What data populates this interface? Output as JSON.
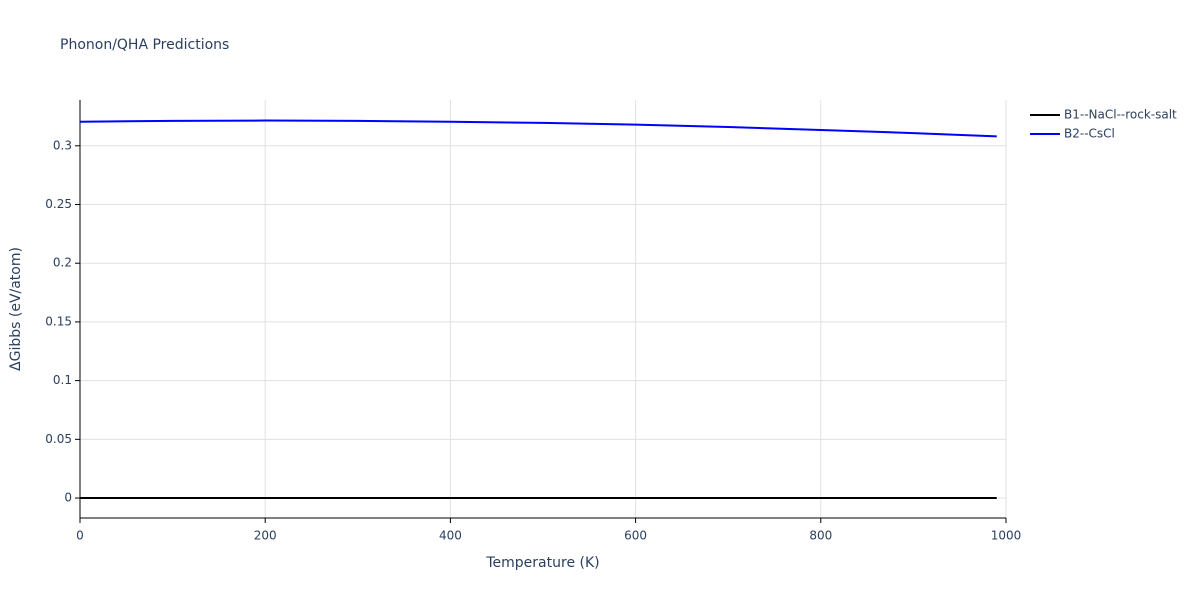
{
  "chart_data": {
    "type": "line",
    "title": "Phonon/QHA Predictions",
    "x_label": "Temperature (K)",
    "y_label": "ΔGibbs (eV/atom)",
    "x": [
      0,
      100,
      200,
      300,
      400,
      500,
      600,
      700,
      800,
      900,
      990
    ],
    "series": [
      {
        "name": "B1--NaCl--rock-salt",
        "color": "#000000",
        "values": [
          0,
          0,
          0,
          0,
          0,
          0,
          0,
          0,
          0,
          0,
          0
        ]
      },
      {
        "name": "B2--CsCl",
        "color": "#0000ff",
        "values": [
          0.3205,
          0.3212,
          0.3215,
          0.3212,
          0.3205,
          0.3195,
          0.318,
          0.316,
          0.3135,
          0.3108,
          0.308
        ]
      }
    ],
    "xlim": [
      0,
      1000
    ],
    "xticks": [
      0,
      200,
      400,
      600,
      800,
      1000
    ],
    "ylim": [
      -0.017,
      0.339
    ],
    "yticks": [
      0,
      0.05,
      0.1,
      0.15,
      0.2,
      0.25,
      0.3
    ],
    "grid": true,
    "legend": "top-right"
  }
}
